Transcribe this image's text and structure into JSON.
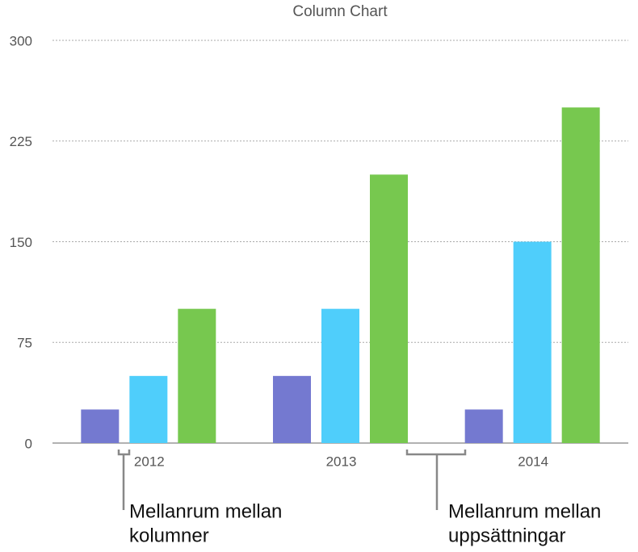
{
  "chart_data": {
    "type": "bar",
    "title": "Column Chart",
    "categories": [
      "2012",
      "2013",
      "2014"
    ],
    "series": [
      {
        "color": "#7479d0",
        "values": [
          25,
          50,
          25
        ]
      },
      {
        "color": "#4fcefb",
        "values": [
          50,
          100,
          150
        ]
      },
      {
        "color": "#77c84f",
        "values": [
          100,
          200,
          250
        ]
      }
    ],
    "ylim": [
      0,
      300
    ],
    "yticks": [
      0,
      75,
      150,
      225,
      300
    ],
    "grid": true,
    "annotations": [
      {
        "lines": [
          "Mellanrum mellan",
          "kolumner"
        ]
      },
      {
        "lines": [
          "Mellanrum mellan",
          "uppsättningar"
        ]
      }
    ]
  }
}
